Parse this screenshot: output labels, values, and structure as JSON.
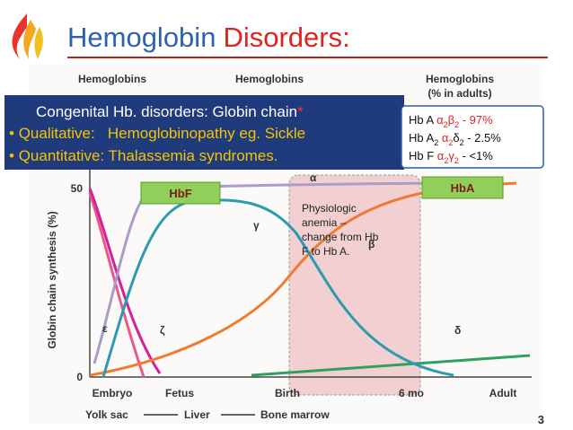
{
  "slide": {
    "title_part1": "Hemoglobin",
    "title_part2": "Disorders:",
    "page_number": "3"
  },
  "figure": {
    "column_headers": [
      "Hemoglobins",
      "Hemoglobins",
      "Hemoglobins"
    ],
    "column_header_sub": "(% in adults)",
    "y_axis_label": "Globin chain synthesis (%)",
    "y_ticks": [
      "50",
      "0"
    ],
    "curve_labels": {
      "alpha": "α",
      "beta": "β",
      "gamma": "γ",
      "epsilon": "ε",
      "zeta": "ζ",
      "delta": "δ"
    },
    "x_labels": [
      "Embryo",
      "Fetus",
      "Birth",
      "6 mo",
      "Adult"
    ],
    "stage_labels": [
      "Yolk sac",
      "Liver",
      "Bone marrow"
    ],
    "hbf_box": "HbF",
    "hba_box": "HbA",
    "annotation": [
      "Physiologic",
      "anemia –",
      "change from Hb",
      "F to Hb A."
    ]
  },
  "overlay": {
    "heading": "Congenital Hb. disorders: Globin chain",
    "asterisk": "*",
    "bullets": [
      "Qualitative:   Hemoglobinopathy eg. Sickle",
      "Quantitative: Thalassemia syndromes."
    ]
  },
  "legend_box": {
    "rows": [
      [
        {
          "t": "Hb A  "
        },
        {
          "t": "α",
          "color": "#e02020"
        },
        {
          "t": "2",
          "sub": true,
          "color": "#e02020"
        },
        {
          "t": "β",
          "color": "#e02020"
        },
        {
          "t": "2",
          "sub": true,
          "color": "#e02020"
        },
        {
          "t": " - 97%",
          "color": "#e02020"
        }
      ],
      [
        {
          "t": "Hb A"
        },
        {
          "t": "2",
          "sub": true
        },
        {
          "t": "  α",
          "color": "#e02020"
        },
        {
          "t": "2",
          "sub": true,
          "color": "#e02020"
        },
        {
          "t": "δ"
        },
        {
          "t": "2",
          "sub": true
        },
        {
          "t": " - 2.5%"
        }
      ],
      [
        {
          "t": "Hb F  "
        },
        {
          "t": "α",
          "color": "#e02020"
        },
        {
          "t": "2",
          "sub": true,
          "color": "#e02020"
        },
        {
          "t": "γ",
          "color": "#e02020"
        },
        {
          "t": "2",
          "sub": true,
          "color": "#e02020"
        },
        {
          "t": "  - <1%"
        }
      ]
    ]
  }
}
